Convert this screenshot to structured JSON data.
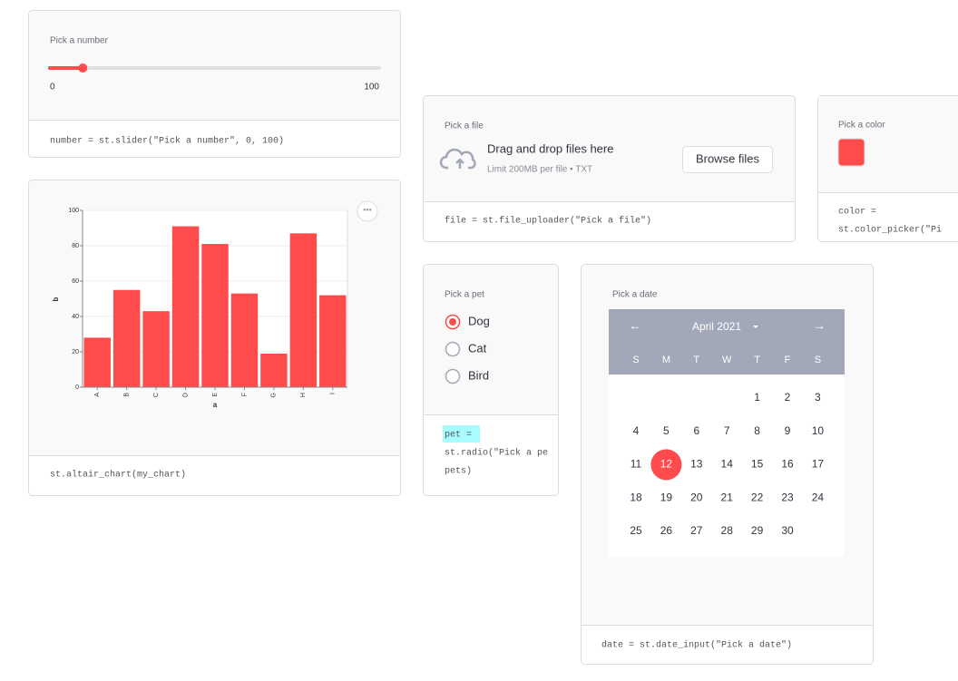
{
  "slider": {
    "label": "Pick a number",
    "min": 0,
    "max": 100,
    "value": 10,
    "color": "#ff4b4b",
    "code": "number = st.slider(\"Pick a number\", 0, 100)"
  },
  "chart_data": {
    "type": "bar",
    "categories": [
      "A",
      "B",
      "C",
      "D",
      "E",
      "F",
      "G",
      "H",
      "I"
    ],
    "values": [
      28,
      55,
      43,
      91,
      81,
      53,
      19,
      87,
      52
    ],
    "color": "#ff4b4b",
    "x_label": "a",
    "y_label": "b",
    "ylim": [
      0,
      100
    ],
    "yticks": [
      0,
      20,
      40,
      60,
      80,
      100
    ],
    "grid": true
  },
  "chart_card": {
    "code": "st.altair_chart(my_chart)"
  },
  "file_uploader": {
    "label": "Pick a file",
    "title": "Drag and drop files here",
    "limit": "Limit 200MB per file • TXT",
    "button": "Browse files",
    "code": "file = st.file_uploader(\"Pick a file\")"
  },
  "color_picker": {
    "label": "Pick a color",
    "color": "#ff4b4b",
    "code_lines": [
      "color =",
      "st.color_picker(\"Pi"
    ]
  },
  "radio": {
    "label": "Pick a pet",
    "options": [
      "Dog",
      "Cat",
      "Bird"
    ],
    "selected": 0,
    "code_lines": [
      "pet =",
      "st.radio(\"Pick a pe",
      "pets)"
    ]
  },
  "date_input": {
    "label": "Pick a date",
    "month": "April 2021",
    "weekdays": [
      "S",
      "M",
      "T",
      "W",
      "T",
      "F",
      "S"
    ],
    "days": [
      1,
      2,
      3,
      4,
      5,
      6,
      7,
      8,
      9,
      10,
      11,
      12,
      13,
      14,
      15,
      16,
      17,
      18,
      19,
      20,
      21,
      22,
      23,
      24,
      25,
      26,
      27,
      28,
      29,
      30
    ],
    "selected": 12,
    "code": "date = st.date_input(\"Pick a date\")"
  }
}
